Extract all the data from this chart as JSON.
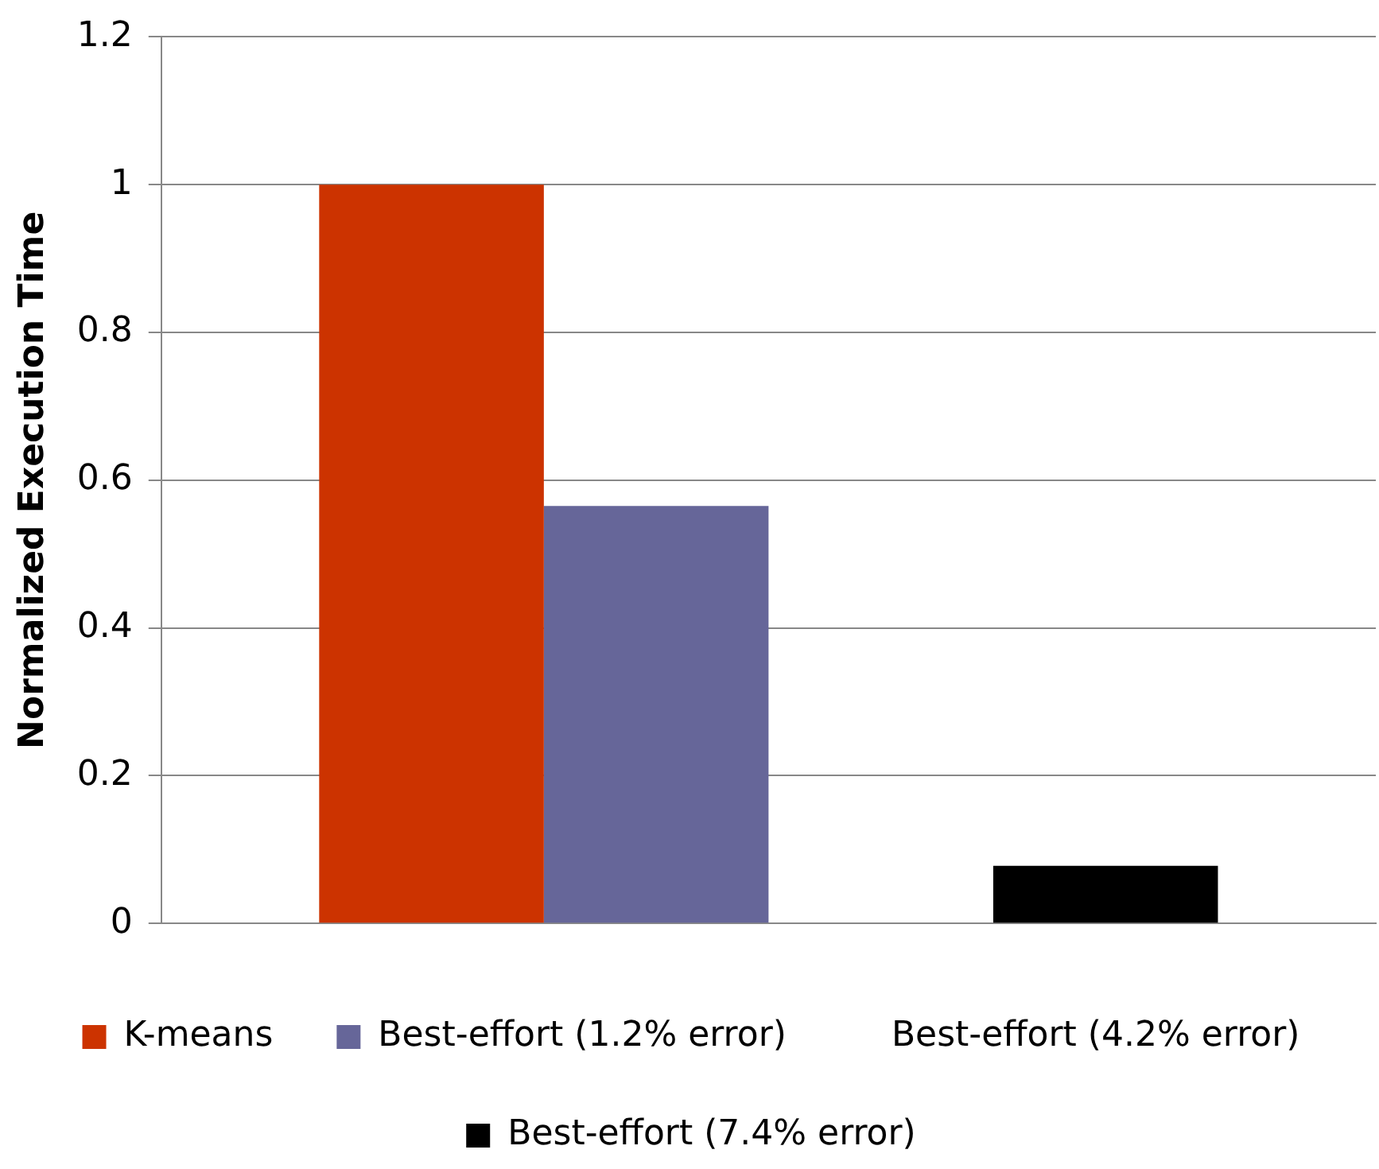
{
  "chart_data": {
    "type": "bar",
    "ylabel": "Normalized Execution Time",
    "categories": [
      null
    ],
    "series": [
      {
        "name": "K-means",
        "color": "#cc3300",
        "values": [
          1.0
        ]
      },
      {
        "name": "Best-effort (1.2% error)",
        "color": "#666699",
        "values": [
          0.565
        ]
      },
      {
        "name": "Best-effort (4.2% error)",
        "values": [
          null
        ]
      },
      {
        "name": "Best-effort (7.4% error)",
        "color": "#000000",
        "values": [
          0.078
        ]
      }
    ],
    "ylim": [
      0,
      1.2
    ],
    "yticks": [
      0,
      0.2,
      0.4,
      0.6,
      0.8,
      1,
      1.2
    ],
    "grid": "y",
    "legend": "bottom"
  }
}
